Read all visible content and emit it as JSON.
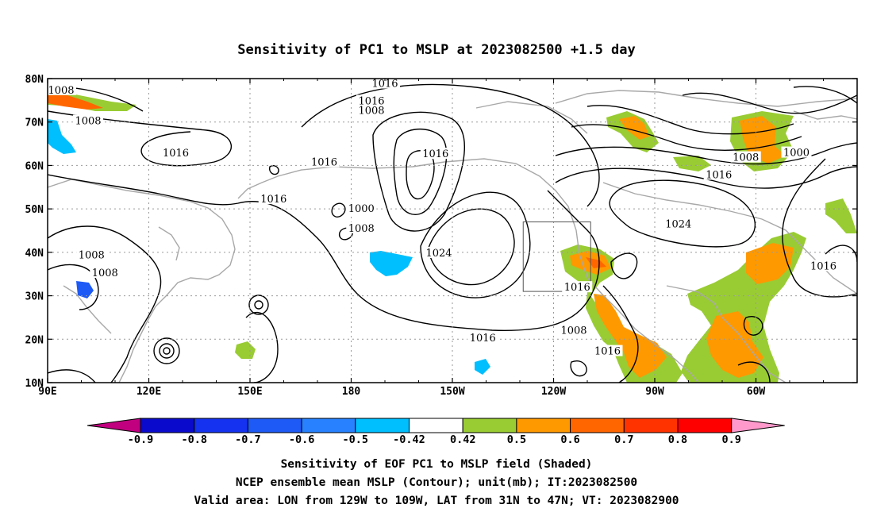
{
  "title": "Sensitivity of PC1 to MSLP at 2023082500 +1.5 day",
  "lat_labels": [
    "80N",
    "70N",
    "60N",
    "50N",
    "40N",
    "30N",
    "20N",
    "10N"
  ],
  "lon_labels": [
    "90E",
    "120E",
    "150E",
    "180",
    "150W",
    "120W",
    "90W",
    "60W"
  ],
  "contour_labels": [
    {
      "text": "1008",
      "lon": 94,
      "lat": 77.3
    },
    {
      "text": "1008",
      "lon": 102,
      "lat": 70.2
    },
    {
      "text": "1016",
      "lon": 128,
      "lat": 62.8
    },
    {
      "text": "1016",
      "lon": 190,
      "lat": 78.8
    },
    {
      "text": "1016",
      "lon": 186,
      "lat": 74.8
    },
    {
      "text": "1008",
      "lon": 186,
      "lat": 72.6
    },
    {
      "text": "1016",
      "lon": 172,
      "lat": 60.7
    },
    {
      "text": "1016",
      "lon": 205,
      "lat": 62.6
    },
    {
      "text": "1000",
      "lon": 183,
      "lat": 50.0
    },
    {
      "text": "1008",
      "lon": 183,
      "lat": 45.5
    },
    {
      "text": "1016",
      "lon": 157,
      "lat": 52.2
    },
    {
      "text": "1024",
      "lon": 206,
      "lat": 39.8
    },
    {
      "text": "1008",
      "lon": 103,
      "lat": 39.3
    },
    {
      "text": "1008",
      "lon": 107,
      "lat": 35.2
    },
    {
      "text": "1016",
      "lon": 219,
      "lat": 20.2
    },
    {
      "text": "1016",
      "lon": 247,
      "lat": 31.9
    },
    {
      "text": "1008",
      "lon": 246,
      "lat": 22.0
    },
    {
      "text": "1016",
      "lon": 256,
      "lat": 17.2
    },
    {
      "text": "1024",
      "lon": 277,
      "lat": 46.5
    },
    {
      "text": "1008",
      "lon": 297,
      "lat": 61.8
    },
    {
      "text": "1000",
      "lon": 312,
      "lat": 62.9
    },
    {
      "text": "1016",
      "lon": 289,
      "lat": 57.8
    },
    {
      "text": "1016",
      "lon": 320,
      "lat": 36.8
    }
  ],
  "valid_box": {
    "lon_min": -129,
    "lon_max": -109,
    "lat_min": 31,
    "lat_max": 47
  },
  "colorbar": {
    "tick_labels": [
      "-0.9",
      "-0.8",
      "-0.7",
      "-0.6",
      "-0.5",
      "-0.42",
      "0.42",
      "0.5",
      "0.6",
      "0.7",
      "0.8",
      "0.9"
    ],
    "colors": [
      "#c0007f",
      "#0a0acd",
      "#1432f0",
      "#1e5af5",
      "#2882ff",
      "#00bfff",
      "#ffffff",
      "#99cc33",
      "#ff9900",
      "#ff6600",
      "#ff3300",
      "#ff0000",
      "#ff99cc"
    ]
  },
  "caption": [
    "Sensitivity of EOF PC1 to MSLP field (Shaded)",
    "NCEP ensemble mean MSLP (Contour); unit(mb); IT:2023082500",
    "Valid area: LON from 129W to 109W, LAT from 31N to 47N; VT: 2023082900"
  ]
}
